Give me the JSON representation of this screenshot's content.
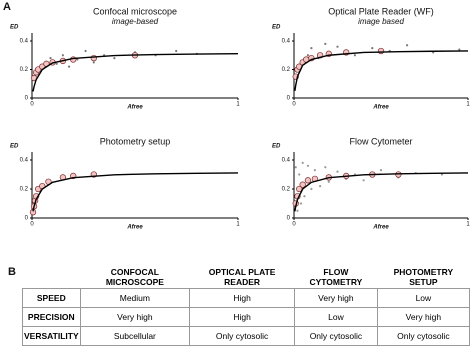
{
  "panel_labels": [
    "A",
    "B"
  ],
  "chart_data": [
    {
      "type": "scatter",
      "title": "Confocal microscope",
      "subtitle": "image-based",
      "xlabel": "Afree",
      "ylabel": "ED",
      "xlim": [
        0,
        1
      ],
      "ylim": [
        0,
        0.4
      ],
      "xticks": [
        0,
        1
      ],
      "yticks": [
        0,
        0.2,
        0.4
      ],
      "series": [
        {
          "color": "#777777",
          "x": [
            0.03,
            0.06,
            0.09,
            0.12,
            0.15,
            0.18,
            0.22,
            0.26,
            0.3,
            0.35,
            0.4,
            0.5,
            0.6,
            0.7,
            0.8
          ],
          "values": [
            0.19,
            0.22,
            0.28,
            0.24,
            0.3,
            0.22,
            0.27,
            0.33,
            0.25,
            0.3,
            0.28,
            0.32,
            0.3,
            0.33,
            0.31
          ]
        },
        {
          "color": "#f2c4c4",
          "x": [
            0.01,
            0.02,
            0.03,
            0.05,
            0.07,
            0.1,
            0.15,
            0.2,
            0.3,
            0.5
          ],
          "values": [
            0.14,
            0.18,
            0.2,
            0.22,
            0.24,
            0.25,
            0.26,
            0.27,
            0.28,
            0.3
          ]
        }
      ],
      "fit": {
        "x": [
          0.005,
          0.01,
          0.02,
          0.05,
          0.1,
          0.2,
          0.4,
          0.6,
          0.8,
          1
        ],
        "values": [
          0.046,
          0.08,
          0.128,
          0.2,
          0.246,
          0.278,
          0.298,
          0.305,
          0.308,
          0.311
        ]
      }
    },
    {
      "type": "scatter",
      "title": "Optical Plate Reader (WF)",
      "subtitle": "image based",
      "xlabel": "Afree",
      "ylabel": "ED",
      "xlim": [
        0,
        1
      ],
      "ylim": [
        0,
        0.4
      ],
      "xticks": [
        0,
        1
      ],
      "yticks": [
        0,
        0.2,
        0.4
      ],
      "series": [
        {
          "color": "#777777",
          "x": [
            0.02,
            0.05,
            0.08,
            0.1,
            0.14,
            0.18,
            0.2,
            0.25,
            0.3,
            0.35,
            0.45,
            0.55,
            0.65,
            0.8,
            0.95
          ],
          "values": [
            0.2,
            0.25,
            0.3,
            0.35,
            0.28,
            0.38,
            0.3,
            0.36,
            0.32,
            0.3,
            0.35,
            0.33,
            0.37,
            0.32,
            0.34
          ]
        },
        {
          "color": "#f2c4c4",
          "x": [
            0.01,
            0.02,
            0.03,
            0.05,
            0.07,
            0.1,
            0.15,
            0.2,
            0.3,
            0.5
          ],
          "values": [
            0.15,
            0.2,
            0.22,
            0.25,
            0.27,
            0.28,
            0.3,
            0.31,
            0.32,
            0.33
          ]
        }
      ],
      "fit": {
        "x": [
          0.005,
          0.01,
          0.02,
          0.05,
          0.1,
          0.2,
          0.4,
          0.6,
          0.8,
          1
        ],
        "values": [
          0.05,
          0.09,
          0.15,
          0.23,
          0.27,
          0.3,
          0.32,
          0.325,
          0.328,
          0.33
        ]
      }
    },
    {
      "type": "scatter",
      "title": "Photometry setup",
      "xlabel": "Afree",
      "ylabel": "ED",
      "xlim": [
        0,
        1
      ],
      "ylim": [
        0,
        0.4
      ],
      "xticks": [
        0,
        1
      ],
      "yticks": [
        0,
        0.2,
        0.4
      ],
      "series": [
        {
          "color": "#f2c4c4",
          "x": [
            0.005,
            0.01,
            0.015,
            0.02,
            0.03,
            0.05,
            0.08,
            0.15,
            0.2,
            0.3
          ],
          "values": [
            0.04,
            0.08,
            0.12,
            0.15,
            0.2,
            0.22,
            0.25,
            0.28,
            0.29,
            0.3
          ]
        }
      ],
      "fit": {
        "x": [
          0.005,
          0.01,
          0.02,
          0.05,
          0.1,
          0.2,
          0.4,
          0.6,
          0.8,
          1
        ],
        "values": [
          0.046,
          0.08,
          0.128,
          0.2,
          0.246,
          0.278,
          0.298,
          0.305,
          0.308,
          0.311
        ]
      }
    },
    {
      "type": "scatter",
      "title": "Flow Cytometer",
      "xlabel": "Afree",
      "ylabel": "ED",
      "xlim": [
        0,
        1
      ],
      "ylim": [
        0,
        0.4
      ],
      "xticks": [
        0,
        1
      ],
      "yticks": [
        0,
        0.2,
        0.4
      ],
      "series": [
        {
          "color": "#999999",
          "x": [
            0.01,
            0.02,
            0.03,
            0.04,
            0.05,
            0.06,
            0.08,
            0.1,
            0.12,
            0.15,
            0.18,
            0.2,
            0.25,
            0.3,
            0.35,
            0.4,
            0.5,
            0.6,
            0.7,
            0.85
          ],
          "values": [
            0.35,
            0.05,
            0.3,
            0.1,
            0.38,
            0.15,
            0.36,
            0.2,
            0.33,
            0.22,
            0.35,
            0.25,
            0.32,
            0.27,
            0.3,
            0.26,
            0.33,
            0.28,
            0.31,
            0.3
          ]
        },
        {
          "color": "#f2c4c4",
          "x": [
            0.01,
            0.02,
            0.03,
            0.05,
            0.08,
            0.12,
            0.2,
            0.3,
            0.45,
            0.6
          ],
          "values": [
            0.1,
            0.15,
            0.2,
            0.23,
            0.26,
            0.27,
            0.28,
            0.29,
            0.3,
            0.3
          ]
        }
      ],
      "fit": {
        "x": [
          0.005,
          0.01,
          0.02,
          0.05,
          0.1,
          0.2,
          0.4,
          0.6,
          0.8,
          1
        ],
        "values": [
          0.046,
          0.08,
          0.128,
          0.2,
          0.246,
          0.278,
          0.298,
          0.305,
          0.308,
          0.311
        ]
      }
    }
  ],
  "table": {
    "columns": [
      "CONFOCAL MICROSCOPE",
      "OPTICAL PLATE READER",
      "FLOW CYTOMETRY",
      "PHOTOMETRY SETUP"
    ],
    "rows": [
      {
        "label": "SPEED",
        "cells": [
          "Medium",
          "High",
          "Very high",
          "Low"
        ]
      },
      {
        "label": "PRECISION",
        "cells": [
          "Very high",
          "High",
          "Low",
          "Very high"
        ]
      },
      {
        "label": "VERSATILITY",
        "cells": [
          "Subcellular",
          "Only cytosolic",
          "Only cytosolic",
          "Only cytosolic"
        ]
      }
    ]
  }
}
